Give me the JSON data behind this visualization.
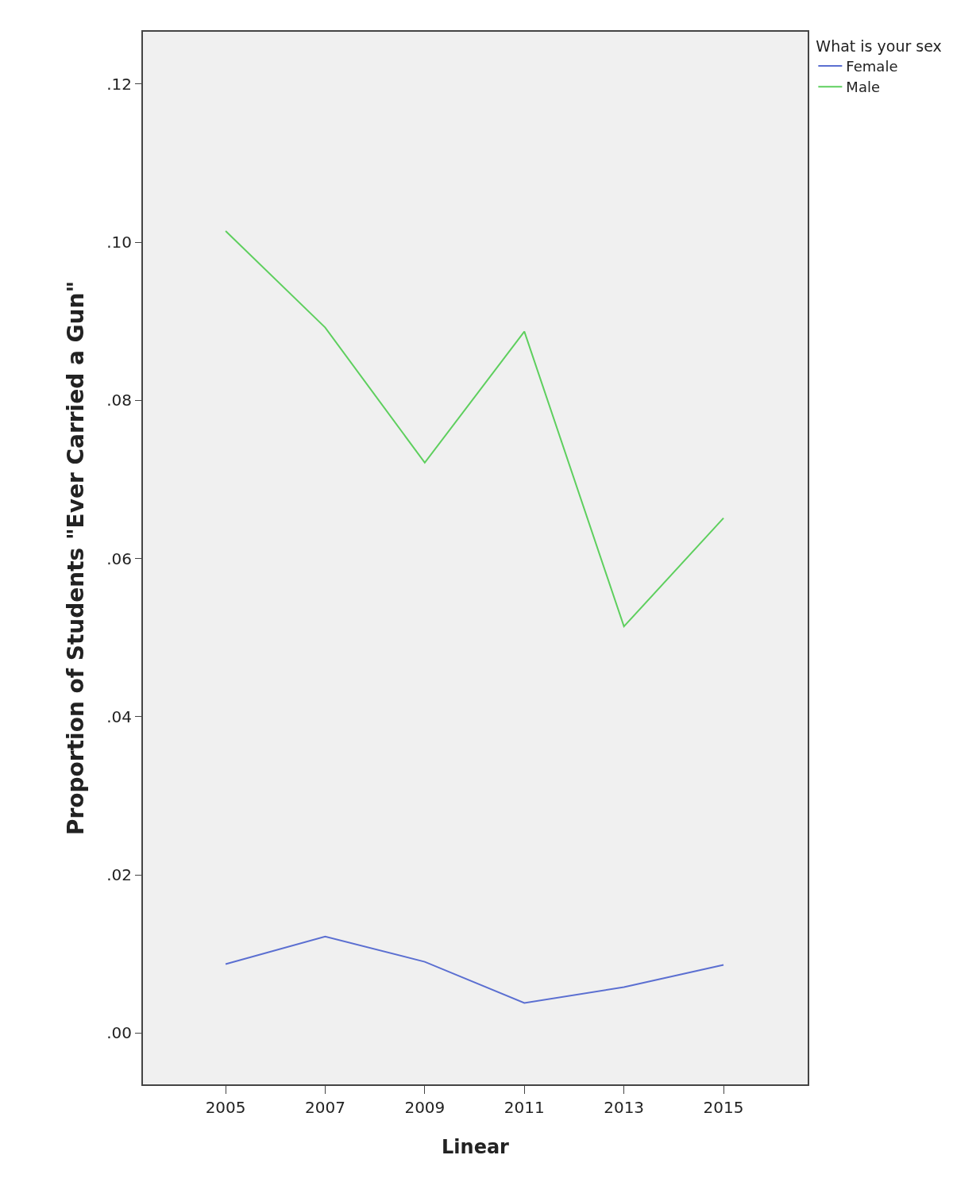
{
  "chart_data": {
    "type": "line",
    "xlabel": "Linear",
    "ylabel": "Proportion of Students \"Ever Carried a Gun\"",
    "legend_title": "What is your sex",
    "x": [
      2005,
      2007,
      2009,
      2011,
      2013,
      2015
    ],
    "series": [
      {
        "name": "Female",
        "color": "#5b6fd1",
        "values": [
          0.0087,
          0.0122,
          0.009,
          0.0038,
          0.0058,
          0.0086
        ]
      },
      {
        "name": "Male",
        "color": "#5ecf5e",
        "values": [
          0.1014,
          0.0892,
          0.0721,
          0.0887,
          0.0514,
          0.0651
        ]
      }
    ],
    "xlim": [
      2003.34,
      2016.69
    ],
    "xticks": [
      2005,
      2007,
      2009,
      2011,
      2013,
      2015
    ],
    "ylim": [
      -0.0065,
      0.1266
    ],
    "yticks": [
      {
        "value": 0,
        "label": ".00"
      },
      {
        "value": 0.02,
        "label": ".02"
      },
      {
        "value": 0.04,
        "label": ".04"
      },
      {
        "value": 0.06,
        "label": ".06"
      },
      {
        "value": 0.08,
        "label": ".08"
      },
      {
        "value": 0.1,
        "label": ".10"
      },
      {
        "value": 0.12,
        "label": ".12"
      }
    ],
    "grid": false,
    "legend": "top right",
    "marker": "none",
    "line_style": "solid"
  }
}
